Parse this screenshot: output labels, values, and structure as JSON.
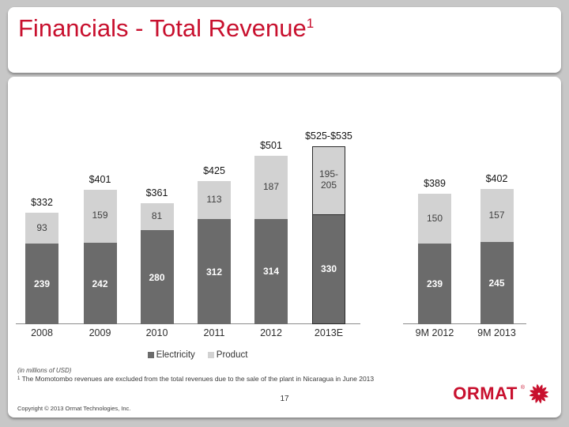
{
  "slide": {
    "title": "Financials  - Total Revenue",
    "title_superscript": "1",
    "page_number": "17",
    "copyright": "Copyright © 2013 Ormat Technologies, Inc.",
    "units_note": "(in millions of USD)",
    "footnote_superscript": "1",
    "footnote": "The Momotombo revenues are excluded from the total revenues due to the sale of  the plant in Nicaragua in June 2013",
    "logo_text": "ORMAT",
    "logo_mark": "®"
  },
  "colors": {
    "title_red": "#c8102e",
    "electricity": "#6b6b6b",
    "product": "#d2d2d2",
    "highlight_border": "#2b2b2b",
    "axis": "#8c8c8c",
    "background": "#c7c7c7"
  },
  "legend": [
    {
      "label": "Electricity",
      "color": "#6b6b6b"
    },
    {
      "label": "Product",
      "color": "#d2d2d2"
    }
  ],
  "chart_data": {
    "type": "bar",
    "stacked": true,
    "title": "Total Revenue",
    "unit": "millions of USD",
    "series_names": [
      "Electricity",
      "Product"
    ],
    "legend_position": "bottom",
    "grid": false,
    "groups": [
      {
        "name": "annual",
        "categories": [
          "2008",
          "2009",
          "2010",
          "2011",
          "2012",
          "2013E"
        ],
        "bars": [
          {
            "category": "2008",
            "electricity": 239,
            "product": 93,
            "total_label": "$332",
            "electricity_label": "239",
            "product_label": "93",
            "highlighted": false
          },
          {
            "category": "2009",
            "electricity": 242,
            "product": 159,
            "total_label": "$401",
            "electricity_label": "242",
            "product_label": "159",
            "highlighted": false
          },
          {
            "category": "2010",
            "electricity": 280,
            "product": 81,
            "total_label": "$361",
            "electricity_label": "280",
            "product_label": "81",
            "highlighted": false
          },
          {
            "category": "2011",
            "electricity": 312,
            "product": 113,
            "total_label": "$425",
            "electricity_label": "312",
            "product_label": "113",
            "highlighted": false
          },
          {
            "category": "2012",
            "electricity": 314,
            "product": 187,
            "total_label": "$501",
            "electricity_label": "314",
            "product_label": "187",
            "highlighted": false
          },
          {
            "category": "2013E",
            "electricity": 330,
            "product": 200,
            "product_range": [
              195,
              205
            ],
            "total_label": "$525-$535",
            "electricity_label": "330",
            "product_label": "195-\n205",
            "highlighted": true
          }
        ]
      },
      {
        "name": "nine_month",
        "categories": [
          "9M 2012",
          "9M 2013"
        ],
        "bars": [
          {
            "category": "9M 2012",
            "electricity": 239,
            "product": 150,
            "total_label": "$389",
            "electricity_label": "239",
            "product_label": "150",
            "highlighted": false
          },
          {
            "category": "9M 2013",
            "electricity": 245,
            "product": 157,
            "total_label": "$402",
            "electricity_label": "245",
            "product_label": "157",
            "highlighted": false
          }
        ]
      }
    ]
  }
}
